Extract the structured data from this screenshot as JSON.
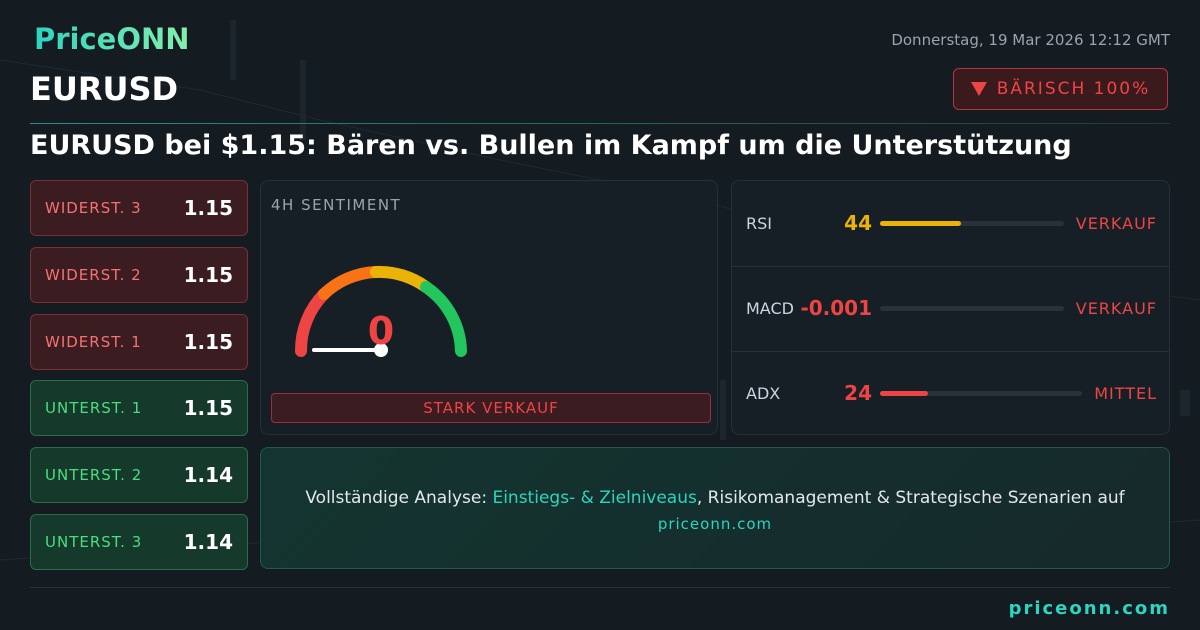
{
  "header": {
    "logo": "PriceONN",
    "datetime": "Donnerstag, 19 Mar 2026 12:12 GMT",
    "symbol": "EURUSD",
    "badge": "BÄRISCH 100%"
  },
  "headline": "EURUSD bei $1.15: Bären vs. Bullen im Kampf um die Unterstützung",
  "levels": [
    {
      "label": "WIDERST. 3",
      "value": 1.15
    },
    {
      "label": "WIDERST. 2",
      "value": 1.15
    },
    {
      "label": "WIDERST. 1",
      "value": 1.15
    },
    {
      "label": "UNTERST. 1",
      "value": 1.15
    },
    {
      "label": "UNTERST. 2",
      "value": 1.14
    },
    {
      "label": "UNTERST. 3",
      "value": 1.14
    }
  ],
  "sentiment": {
    "title": "4H SENTIMENT",
    "value": 0,
    "verdict": "STARK VERKAUF"
  },
  "indicators": [
    {
      "label": "RSI",
      "value": 44,
      "signal": "VERKAUF",
      "color": "#eab308"
    },
    {
      "label": "MACD",
      "value": -0.001,
      "signal": "VERKAUF",
      "color": "#ef4444"
    },
    {
      "label": "ADX",
      "value": 24,
      "signal": "MITTEL",
      "color": "#ef4444"
    }
  ],
  "cta": {
    "intro": "Vollständige Analyse:",
    "highlight": "Einstiegs- & Zielniveaus",
    "rest": ", Risikomanagement & Strategische Szenarien auf",
    "link": "priceonn.com"
  },
  "footer": "priceonn.com"
}
